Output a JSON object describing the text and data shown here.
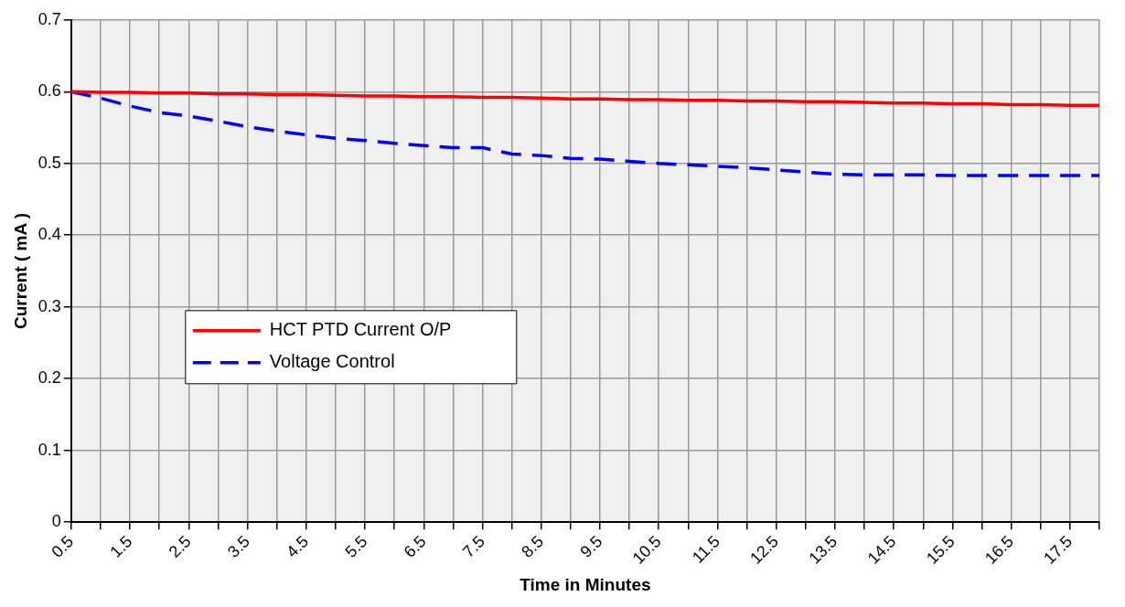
{
  "chart_data": {
    "type": "line",
    "xlabel": "Time in Minutes",
    "ylabel": "Current ( mA )",
    "categories": [
      "0.5",
      null,
      "1.5",
      null,
      "2.5",
      null,
      "3.5",
      null,
      "4.5",
      null,
      "5.5",
      null,
      "6.5",
      null,
      "7.5",
      null,
      "8.5",
      null,
      "9.5",
      null,
      "10.5",
      null,
      "11.5",
      null,
      "12.5",
      null,
      "13.5",
      null,
      "14.5",
      null,
      "15.5",
      null,
      "16.5",
      null,
      "17.5",
      null
    ],
    "series": [
      {
        "name": "HCT PTD Current O/P",
        "color": "#ff0000",
        "line_style": "solid",
        "values": [
          0.6,
          0.599,
          0.599,
          0.598,
          0.598,
          0.597,
          0.597,
          0.596,
          0.596,
          0.595,
          0.594,
          0.594,
          0.593,
          0.593,
          0.592,
          0.592,
          0.591,
          0.59,
          0.59,
          0.589,
          0.589,
          0.588,
          0.588,
          0.587,
          0.587,
          0.586,
          0.586,
          0.585,
          0.584,
          0.584,
          0.583,
          0.583,
          0.582,
          0.582,
          0.581,
          0.581
        ]
      },
      {
        "name": "Voltage Control",
        "color": "#0000ff",
        "line_style": "dashed",
        "values": [
          0.6,
          0.591,
          0.58,
          0.571,
          0.566,
          0.559,
          0.551,
          0.545,
          0.54,
          0.535,
          0.532,
          0.528,
          0.525,
          0.522,
          0.522,
          0.513,
          0.511,
          0.507,
          0.506,
          0.503,
          0.5,
          0.498,
          0.496,
          0.494,
          0.491,
          0.488,
          0.485,
          0.484,
          0.484,
          0.484,
          0.483,
          0.483,
          0.483,
          0.483,
          0.483,
          0.483
        ]
      }
    ],
    "ylim": [
      0,
      0.7
    ],
    "yticks": [
      0,
      0.1,
      0.2,
      0.3,
      0.4,
      0.5,
      0.6,
      0.7
    ],
    "grid": true,
    "legend": "left",
    "marker": "none"
  }
}
